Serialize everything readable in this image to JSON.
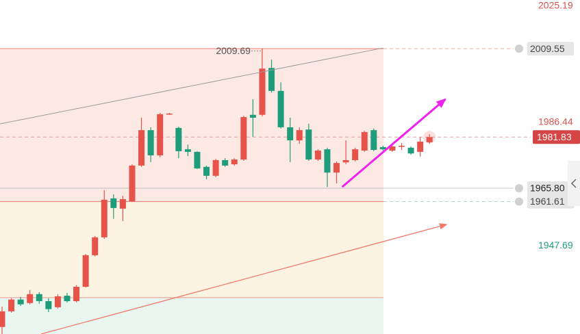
{
  "chart_data": {
    "type": "candlestick",
    "ylim": [
      1920.1,
      2024.8
    ],
    "up_color": "#e5534b",
    "down_color": "#1f9d7a",
    "candles": {
      "open": [
        1922.3,
        1927.2,
        1930.9,
        1929.8,
        1932.6,
        1930.4,
        1928.5,
        1932.1,
        1930.4,
        1934.9,
        1944.8,
        1950.4,
        1962.6,
        1959.4,
        1961.7,
        1972.9,
        1984.0,
        1976.1,
        1989.0,
        1984.7,
        1978.0,
        1977.2,
        1972.5,
        1969.7,
        1974.6,
        1973.3,
        1974.8,
        1988.8,
        1988.8,
        2003.5,
        1996.3,
        1984.9,
        1980.8,
        1984.2,
        1974.8,
        1978.0,
        1970.7,
        1973.9,
        1974.6,
        1977.6,
        1984.0,
        1978.7,
        1977.6,
        1979.1,
        1978.5,
        1977.2,
        1980.2
      ],
      "high": [
        1928.7,
        1931.3,
        1931.7,
        1933.9,
        1933.2,
        1931.3,
        1932.6,
        1933.0,
        1935.4,
        1945.2,
        1950.8,
        1965.2,
        1963.9,
        1963.4,
        1973.3,
        1987.9,
        1984.9,
        1989.4,
        1989.4,
        1985.1,
        1979.5,
        1977.4,
        1972.9,
        1975.0,
        1975.2,
        1975.2,
        1988.5,
        1993.7,
        2009.69,
        2006.1,
        1999.0,
        1987.9,
        1984.9,
        1986.0,
        1978.0,
        1978.5,
        1974.2,
        1980.8,
        1978.5,
        1983.8,
        1984.5,
        1979.1,
        1979.3,
        1980.0,
        1978.9,
        1981.9,
        1982.7
      ],
      "low": [
        1920.1,
        1926.8,
        1928.9,
        1929.4,
        1929.6,
        1927.0,
        1928.1,
        1930.0,
        1930.0,
        1934.7,
        1944.4,
        1949.9,
        1956.2,
        1955.5,
        1961.5,
        1972.5,
        1974.0,
        1975.5,
        1988.8,
        1975.2,
        1975.9,
        1971.8,
        1968.6,
        1969.2,
        1972.5,
        1972.9,
        1974.4,
        1981.9,
        1988.3,
        1995.8,
        1984.5,
        1974.0,
        1979.7,
        1974.4,
        1974.4,
        1966.2,
        1967.3,
        1973.3,
        1974.2,
        1977.2,
        1977.4,
        1977.6,
        1977.2,
        1977.8,
        1976.3,
        1975.7,
        1979.7
      ],
      "close": [
        1927.2,
        1930.9,
        1929.4,
        1932.6,
        1930.4,
        1927.9,
        1931.9,
        1930.4,
        1934.9,
        1944.8,
        1950.4,
        1962.2,
        1959.6,
        1962.4,
        1972.9,
        1984.0,
        1976.1,
        1989.0,
        1989.2,
        1977.4,
        1977.2,
        1972.0,
        1969.7,
        1974.6,
        1972.9,
        1974.8,
        1988.1,
        1987.9,
        2003.3,
        1996.3,
        1984.9,
        1980.8,
        1984.0,
        1974.8,
        1977.6,
        1970.7,
        1973.7,
        1974.6,
        1978.0,
        1983.4,
        1977.8,
        1978.0,
        1978.9,
        1979.1,
        1976.7,
        1980.4,
        1981.83
      ]
    },
    "high_annotation_index": 28,
    "zones": [
      {
        "top": 2009.55,
        "color": "#fde9e3"
      },
      {
        "top": 1961.61,
        "color": "#fdf3e3"
      },
      {
        "top": 1931.5,
        "color": "#e9f6ef"
      }
    ],
    "price_lines": [
      {
        "value": 2009.55,
        "color": "#f08a80",
        "dash": "right",
        "right_color": "#f0a8a0"
      },
      {
        "value": 1981.83,
        "color": "#e9a0a0",
        "dash": "all",
        "right_color": "#e9a0a0"
      },
      {
        "value": 1965.8,
        "color": "#c8c8c8",
        "dash": "none",
        "right_color": "#c8c8c8"
      },
      {
        "value": 1961.61,
        "color": "#e58a80",
        "dash": "right",
        "right_color": "#a8d8d8"
      },
      {
        "value": 1931.5,
        "color": "#f0a8a0",
        "dash": "none",
        "right_color": "#f0a8a0"
      }
    ],
    "trend_lines": [
      {
        "x": [
          -0.22,
          41.0
        ],
        "y": [
          1985.96,
          2009.77
        ],
        "color": "#9a9a9a",
        "width": 1,
        "arrow": false
      },
      {
        "x": [
          4.2,
          47.8
        ],
        "y": [
          1920.1,
          1954.4
        ],
        "color": "#f07a6a",
        "width": 1.3,
        "arrow": true
      },
      {
        "x": [
          36.6,
          47.7
        ],
        "y": [
          1966.2,
          1993.7
        ],
        "color": "#ee22ee",
        "width": 3,
        "arrow": true
      }
    ],
    "price_labels": [
      {
        "value": 2025.19,
        "color": "#d9534f",
        "boxed": false
      },
      {
        "value": 2009.55,
        "color": "#e6e6e6",
        "text_color": "#444444",
        "boxed": true,
        "bell": true
      },
      {
        "value": 1986.44,
        "color": "#d9534f",
        "boxed": false
      },
      {
        "value": 1981.83,
        "color": "#d64545",
        "text_color": "#ffffff",
        "boxed": true,
        "bell": false
      },
      {
        "value": 1965.8,
        "label": "1965.80",
        "color": "#e6e6e6",
        "text_color": "#222222",
        "boxed": true,
        "bell": true
      },
      {
        "value": 1961.61,
        "color": "#e6e6e6",
        "text_color": "#444444",
        "boxed": true,
        "bell": true
      },
      {
        "value": 1947.69,
        "color": "#1f9d7a",
        "boxed": false
      }
    ]
  }
}
